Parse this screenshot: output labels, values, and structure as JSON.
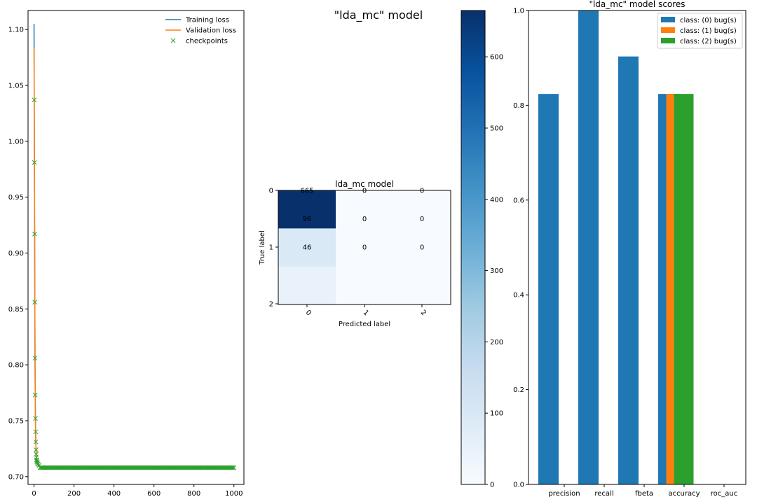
{
  "figure": {
    "suptitle": "\"lda_mc\" model"
  },
  "colors": {
    "training": "#1f77b4",
    "validation": "#ff7f0e",
    "checkpoints": "#2ca02c",
    "class0": "#1f77b4",
    "class1": "#ff7f0e",
    "class2": "#2ca02c"
  },
  "chart_data": [
    {
      "type": "line",
      "title": "",
      "xlabel": "",
      "ylabel": "",
      "xlim": [
        -30,
        1050
      ],
      "ylim": [
        0.693,
        1.117
      ],
      "xticks": [
        0,
        200,
        400,
        600,
        800,
        1000
      ],
      "xtick_labels": [
        "0",
        "200",
        "400",
        "600",
        "800",
        "1000"
      ],
      "yticks": [
        0.7,
        0.75,
        0.8,
        0.85,
        0.9,
        0.95,
        1.0,
        1.05,
        1.1
      ],
      "ytick_labels": [
        "0.70",
        "0.75",
        "0.80",
        "0.85",
        "0.90",
        "0.95",
        "1.00",
        "1.05",
        "1.10"
      ],
      "legend": {
        "position": "top-right",
        "entries": [
          "Training loss",
          "Validation loss",
          "checkpoints"
        ]
      },
      "series": [
        {
          "name": "Training loss",
          "x": [
            0,
            1,
            2,
            3,
            4,
            5,
            6,
            7,
            8,
            9,
            10,
            12,
            15,
            20,
            30,
            50,
            100,
            200,
            400,
            600,
            800,
            1000
          ],
          "y": [
            1.105,
            1.037,
            0.981,
            0.917,
            0.856,
            0.806,
            0.773,
            0.752,
            0.74,
            0.731,
            0.724,
            0.717,
            0.713,
            0.711,
            0.709,
            0.708,
            0.708,
            0.708,
            0.708,
            0.708,
            0.708,
            0.708
          ]
        },
        {
          "name": "Validation loss",
          "x": [
            0,
            1,
            2,
            3,
            4,
            5,
            6,
            7,
            8,
            9,
            10,
            12,
            15,
            20,
            30,
            50,
            100,
            200,
            400,
            600,
            800,
            1000
          ],
          "y": [
            1.084,
            1.03,
            0.976,
            0.913,
            0.853,
            0.804,
            0.772,
            0.751,
            0.739,
            0.73,
            0.723,
            0.716,
            0.712,
            0.71,
            0.709,
            0.708,
            0.708,
            0.708,
            0.708,
            0.708,
            0.708,
            0.708
          ]
        },
        {
          "name": "checkpoints",
          "marker": "x",
          "x": [
            1,
            2,
            3,
            4,
            5,
            6,
            7,
            8,
            9,
            10,
            11,
            12,
            13,
            14,
            15,
            17,
            20,
            25
          ],
          "y": [
            1.037,
            0.981,
            0.917,
            0.856,
            0.806,
            0.773,
            0.752,
            0.74,
            0.731,
            0.724,
            0.72,
            0.717,
            0.715,
            0.714,
            0.713,
            0.712,
            0.711,
            0.71
          ],
          "flat_run": {
            "x_from": 30,
            "x_to": 1000,
            "step": 5,
            "y": 0.708
          }
        }
      ]
    },
    {
      "type": "heatmap",
      "title": "lda_mc model",
      "xlabel": "Predicted label",
      "ylabel": "True label",
      "row_labels": [
        "0",
        "1",
        "2"
      ],
      "col_labels": [
        "0",
        "1",
        "2"
      ],
      "values": [
        [
          665,
          0,
          0
        ],
        [
          96,
          0,
          0
        ],
        [
          46,
          0,
          0
        ]
      ],
      "display_text": [
        [
          "665",
          "0",
          "0"
        ],
        [
          "96",
          "0",
          "0"
        ],
        [
          "46",
          "0",
          "0"
        ]
      ],
      "colormap": "Blues",
      "colorbar": {
        "min": 0,
        "max": 665,
        "ticks": [
          0,
          100,
          200,
          300,
          400,
          500,
          600
        ]
      }
    },
    {
      "type": "bar",
      "title": "\"lda_mc\" model scores",
      "categories": [
        "precision",
        "recall",
        "fbeta",
        "accuracy",
        "roc_auc"
      ],
      "ylim": [
        0,
        1.0
      ],
      "yticks": [
        0.0,
        0.2,
        0.4,
        0.6,
        0.8,
        1.0
      ],
      "ytick_labels": [
        "0.0",
        "0.2",
        "0.4",
        "0.6",
        "0.8",
        "1.0"
      ],
      "legend": {
        "position": "top-right",
        "entries": [
          "class: (0) bug(s)",
          "class: (1) bug(s)",
          "class: (2) bug(s)"
        ]
      },
      "series": [
        {
          "name": "class: (0) bug(s)",
          "values": [
            0.824,
            1.0,
            0.903,
            0.824,
            0
          ]
        },
        {
          "name": "class: (1) bug(s)",
          "values": [
            0,
            0,
            0,
            0.824,
            0
          ]
        },
        {
          "name": "class: (2) bug(s)",
          "values": [
            0,
            0,
            0,
            0.824,
            0
          ]
        }
      ]
    }
  ]
}
